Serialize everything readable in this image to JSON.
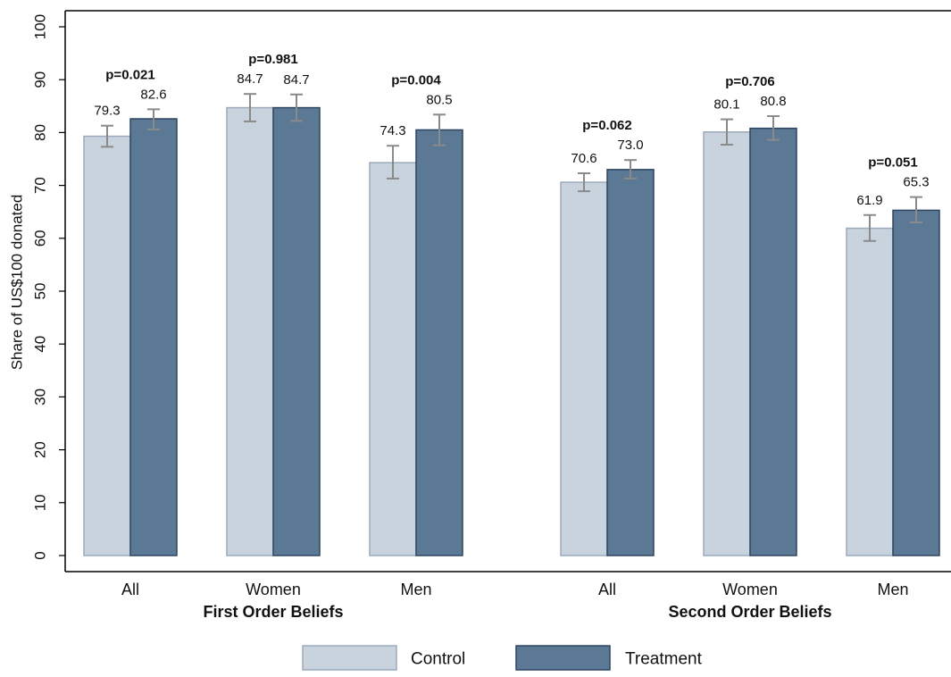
{
  "chart_data": {
    "type": "bar",
    "title": "",
    "ylabel": "Share of US$100 donated",
    "xlabel": "",
    "ylim": [
      0,
      100
    ],
    "yticks": [
      0,
      10,
      20,
      30,
      40,
      50,
      60,
      70,
      80,
      90,
      100
    ],
    "grid": false,
    "legend_position": "bottom",
    "groups": [
      {
        "label": "First Order Beliefs",
        "categories": [
          {
            "label": "All",
            "p_value": "p=0.021",
            "control": 79.3,
            "control_label": "79.3",
            "treatment": 82.6,
            "treatment_label": "82.6",
            "control_ci": [
              77.3,
              81.3
            ],
            "treatment_ci": [
              80.6,
              84.4
            ]
          },
          {
            "label": "Women",
            "p_value": "p=0.981",
            "control": 84.7,
            "control_label": "84.7",
            "treatment": 84.7,
            "treatment_label": "84.7",
            "control_ci": [
              82.1,
              87.3
            ],
            "treatment_ci": [
              82.2,
              87.2
            ]
          },
          {
            "label": "Men",
            "p_value": "p=0.004",
            "control": 74.3,
            "control_label": "74.3",
            "treatment": 80.5,
            "treatment_label": "80.5",
            "control_ci": [
              71.3,
              77.5
            ],
            "treatment_ci": [
              77.6,
              83.4
            ]
          }
        ]
      },
      {
        "label": "Second Order Beliefs",
        "categories": [
          {
            "label": "All",
            "p_value": "p=0.062",
            "control": 70.6,
            "control_label": "70.6",
            "treatment": 73.0,
            "treatment_label": "73.0",
            "control_ci": [
              68.9,
              72.3
            ],
            "treatment_ci": [
              71.3,
              74.8
            ]
          },
          {
            "label": "Women",
            "p_value": "p=0.706",
            "control": 80.1,
            "control_label": "80.1",
            "treatment": 80.8,
            "treatment_label": "80.8",
            "control_ci": [
              77.7,
              82.5
            ],
            "treatment_ci": [
              78.6,
              83.1
            ]
          },
          {
            "label": "Men",
            "p_value": "p=0.051",
            "control": 61.9,
            "control_label": "61.9",
            "treatment": 65.3,
            "treatment_label": "65.3",
            "control_ci": [
              59.5,
              64.4
            ],
            "treatment_ci": [
              63.0,
              67.8
            ]
          }
        ]
      }
    ],
    "series": [
      {
        "name": "Control",
        "color": "#c9d3de",
        "stroke": "#9aaabb"
      },
      {
        "name": "Treatment",
        "color": "#5b7895",
        "stroke": "#2c4560"
      }
    ],
    "errorbar_color": "#8a8a8a"
  }
}
